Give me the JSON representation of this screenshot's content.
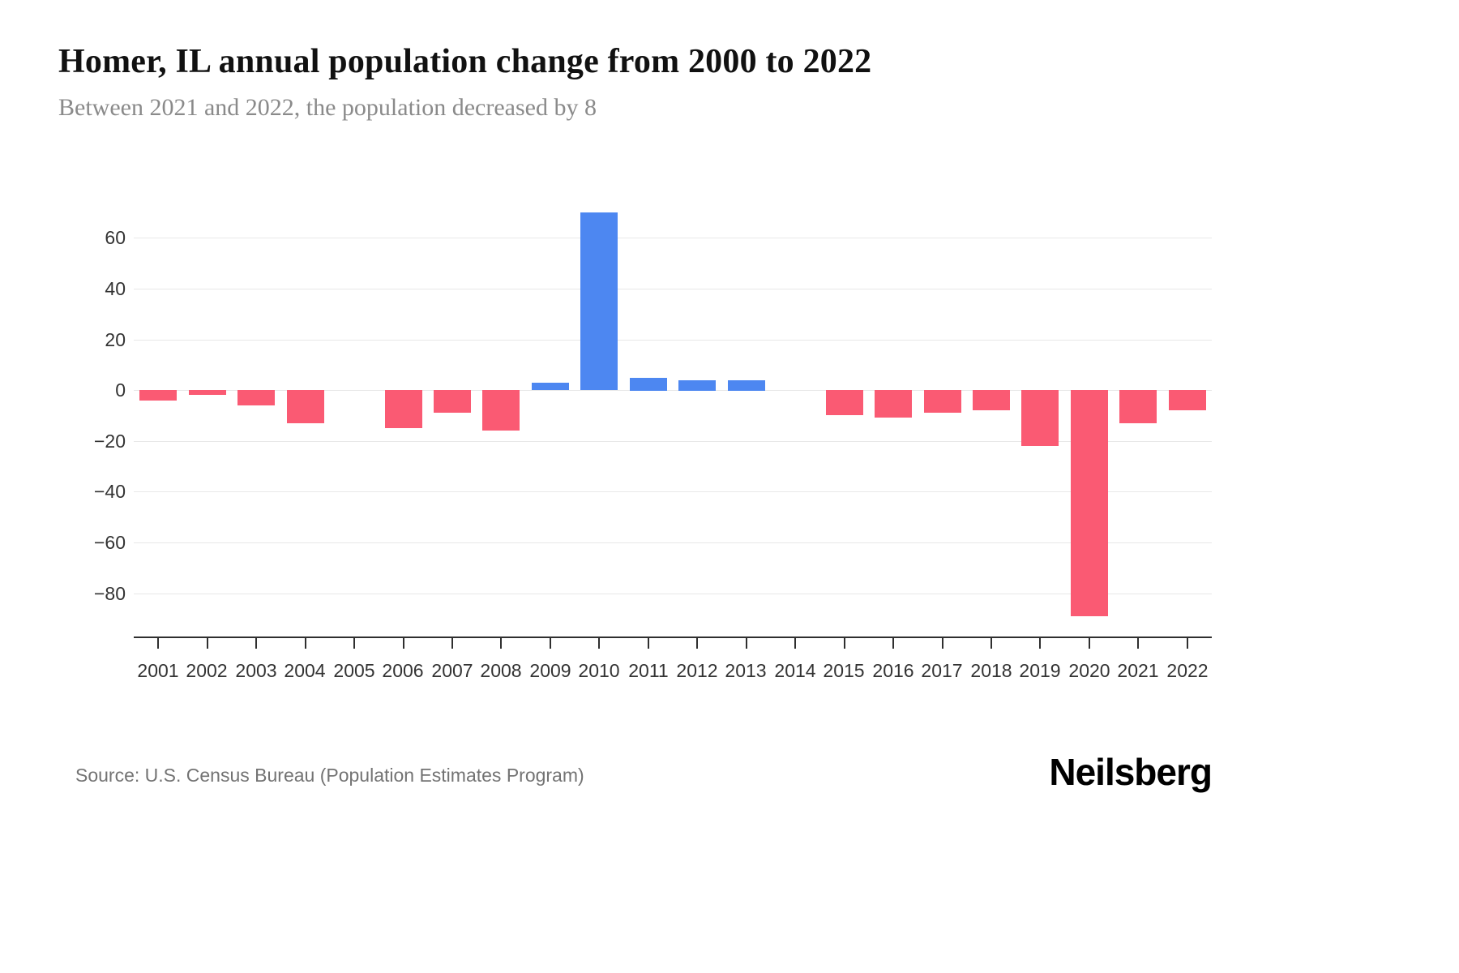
{
  "header": {
    "title": "Homer, IL annual population change from 2000 to 2022",
    "subtitle": "Between 2021 and 2022, the population decreased by 8"
  },
  "footer": {
    "source": "Source: U.S. Census Bureau (Population Estimates Program)",
    "brand": "Neilsberg"
  },
  "chart_data": {
    "type": "bar",
    "title": "Homer, IL annual population change from 2000 to 2022",
    "subtitle": "Between 2021 and 2022, the population decreased by 8",
    "categories": [
      "2001",
      "2002",
      "2003",
      "2004",
      "2005",
      "2006",
      "2007",
      "2008",
      "2009",
      "2010",
      "2011",
      "2012",
      "2013",
      "2014",
      "2015",
      "2016",
      "2017",
      "2018",
      "2019",
      "2020",
      "2021",
      "2022"
    ],
    "values": [
      -4,
      -2,
      -6,
      -13,
      0,
      -15,
      -9,
      -16,
      3,
      70,
      5,
      4,
      4,
      0,
      -10,
      -11,
      -9,
      -8,
      -22,
      -89,
      -13,
      -8
    ],
    "xlabel": "",
    "ylabel": "",
    "ylim": [
      -97,
      77
    ],
    "yticks": [
      60,
      40,
      20,
      0,
      -20,
      -40,
      -60,
      -80
    ],
    "grid": true,
    "legend": "none",
    "colors": {
      "positive_bar": "#4d87f1",
      "negative_bar": "#fa5a73",
      "axis_text": "#333333",
      "gridline": "#e8e8e8",
      "axis_line": "#2f2f2f"
    }
  }
}
